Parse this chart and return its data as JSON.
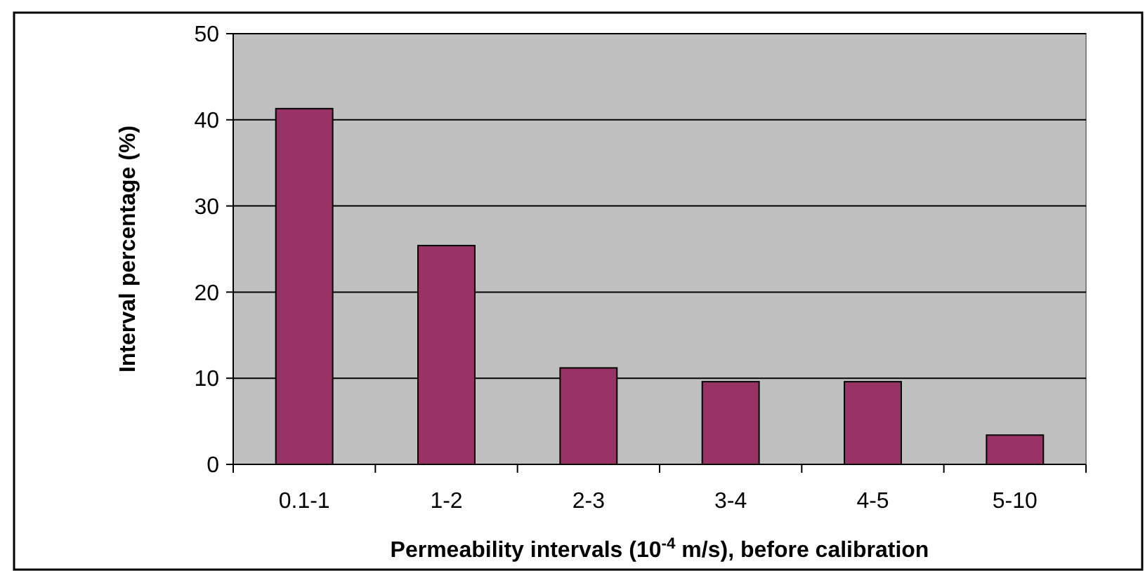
{
  "chart_data": {
    "type": "bar",
    "xlabel": "Permeability intervals (10$^{-4}$ m/s), before calibration",
    "ylabel": "Interval percentage (%)",
    "categories": [
      "0.1-1",
      "1-2",
      "2-3",
      "3-4",
      "4-5",
      "5-10"
    ],
    "values": [
      41.3,
      25.4,
      11.2,
      9.6,
      9.6,
      3.4
    ],
    "color": "#993366",
    "ylim": [
      0,
      50
    ],
    "yticks": [
      0,
      10,
      20,
      30,
      40,
      50
    ],
    "grid": "y"
  }
}
